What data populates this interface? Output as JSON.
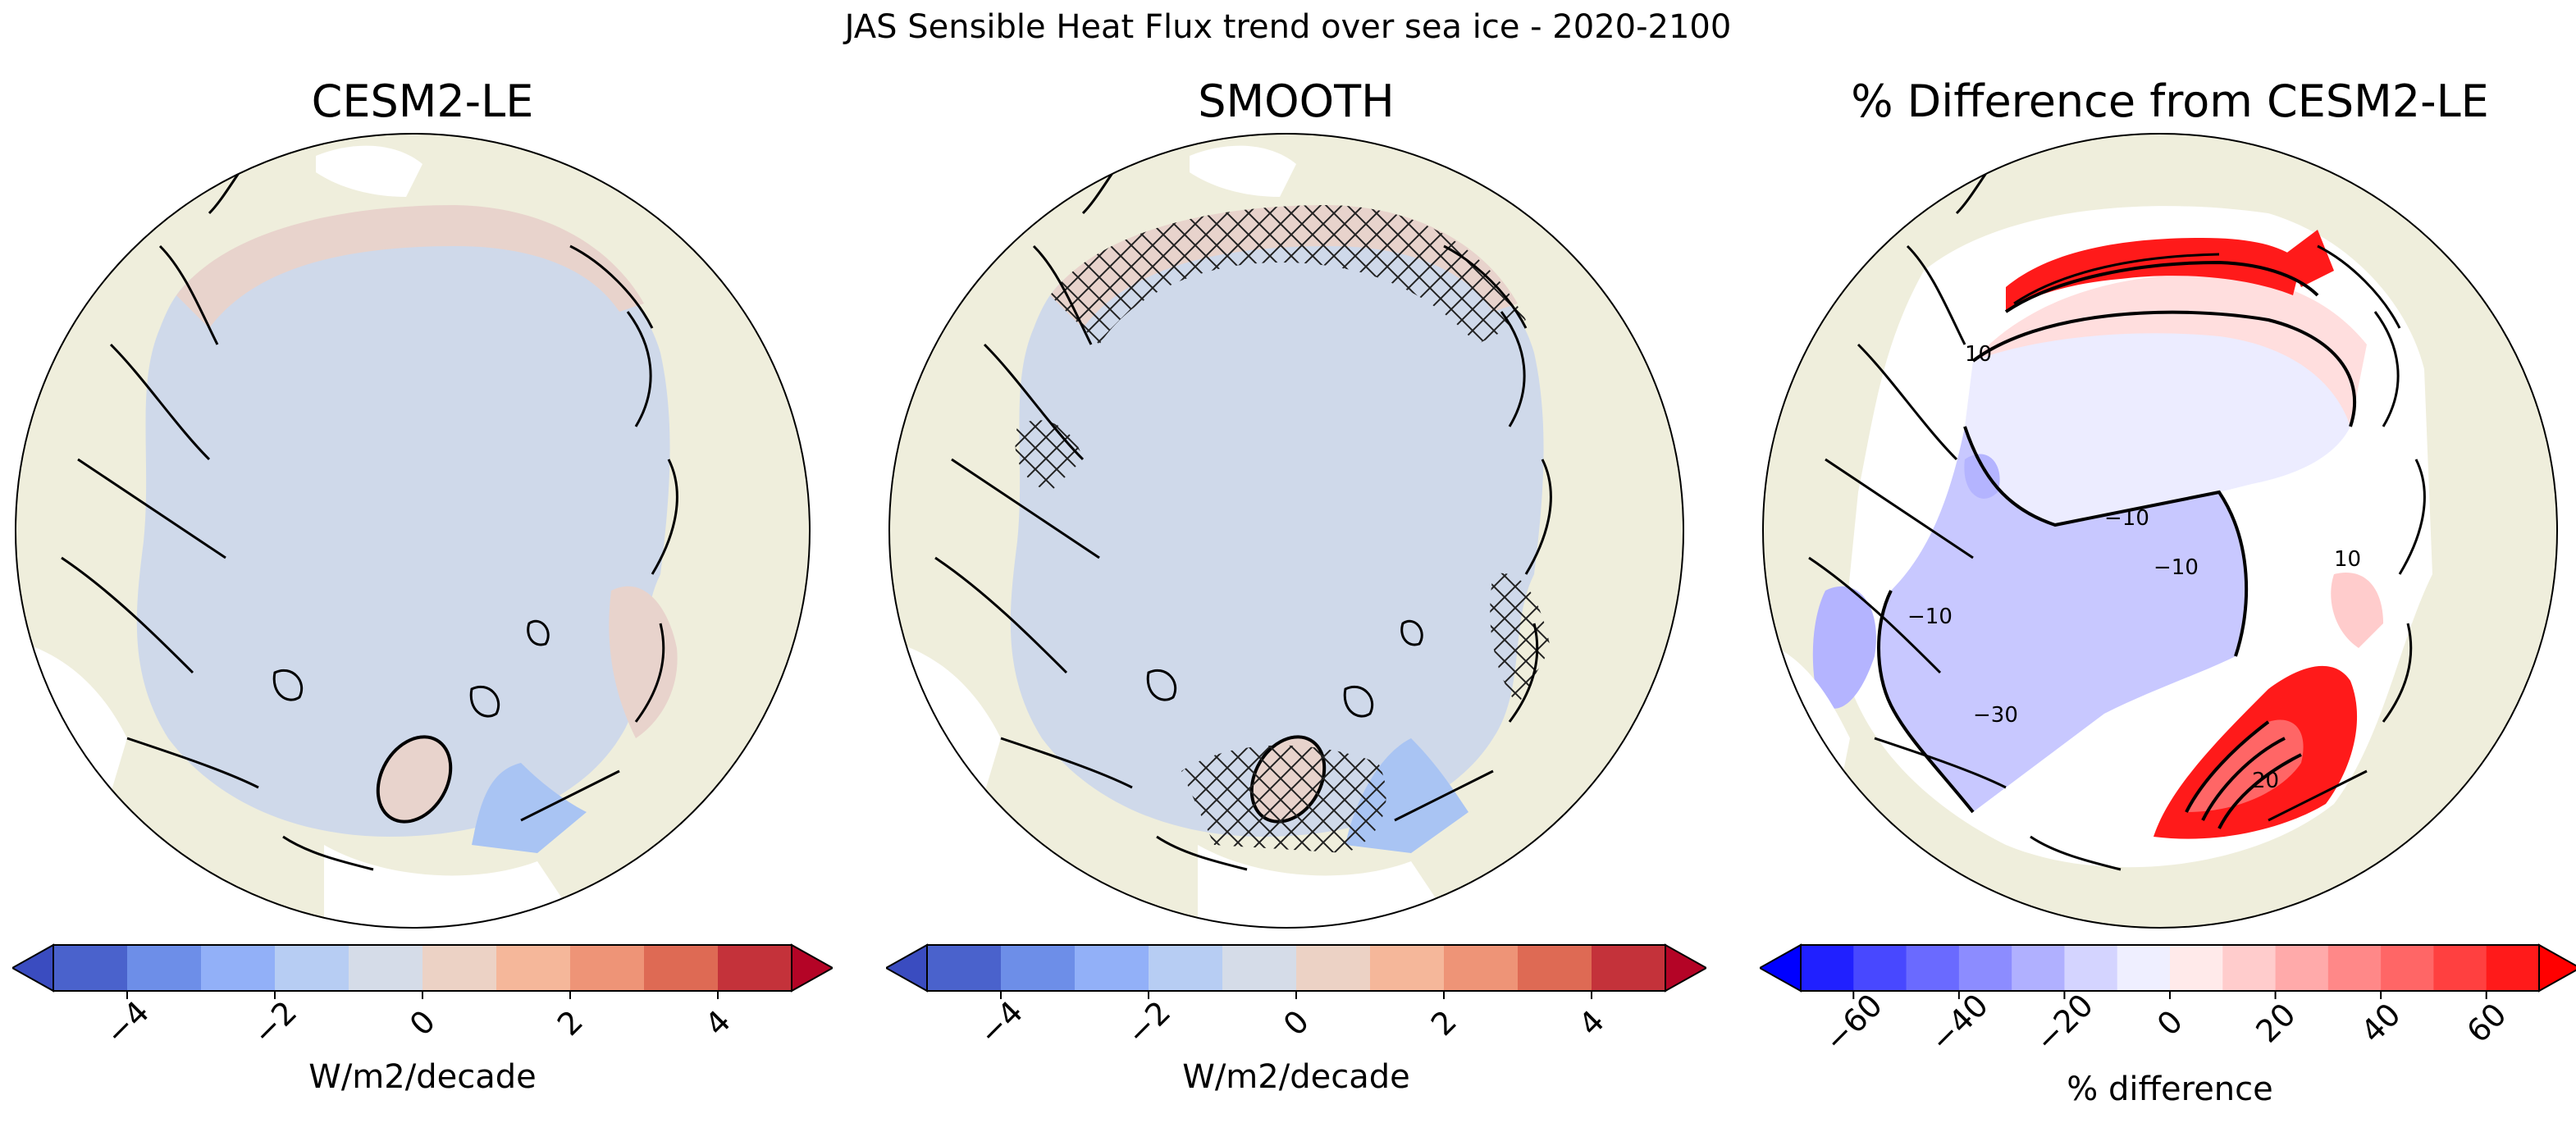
{
  "figure": {
    "suptitle": "JAS Sensible Heat Flux trend over sea ice - 2020-2100"
  },
  "colors": {
    "land": "#efeedc",
    "ocean_open": "#ffffff",
    "ice_neutral": "#cfd9ea",
    "ice_positive": "#e8d3cc",
    "ice_negative_blue": "#a9c4f3"
  },
  "panels": [
    {
      "id": "cesm2-le",
      "title": "CESM2-LE",
      "colorbar": {
        "label": "W/m2/decade",
        "colors": [
          "#4a62cc",
          "#6d8ee8",
          "#92b0f8",
          "#b7cdf3",
          "#d5dce8",
          "#ecd2c5",
          "#f5b79a",
          "#ee9477",
          "#de6a54",
          "#c4323a"
        ],
        "extend_min": "#3a4cc0",
        "extend_max": "#b40426",
        "vmin": -5,
        "vmax": 5,
        "ticks": [
          "−4",
          "−2",
          "0",
          "2",
          "4"
        ],
        "tick_values": [
          -4,
          -2,
          0,
          2,
          4
        ]
      },
      "hatched": false
    },
    {
      "id": "smooth",
      "title": "SMOOTH",
      "colorbar": {
        "label": "W/m2/decade",
        "colors": [
          "#4a62cc",
          "#6d8ee8",
          "#92b0f8",
          "#b7cdf3",
          "#d5dce8",
          "#ecd2c5",
          "#f5b79a",
          "#ee9477",
          "#de6a54",
          "#c4323a"
        ],
        "extend_min": "#3a4cc0",
        "extend_max": "#b40426",
        "vmin": -5,
        "vmax": 5,
        "ticks": [
          "−4",
          "−2",
          "0",
          "2",
          "4"
        ],
        "tick_values": [
          -4,
          -2,
          0,
          2,
          4
        ]
      },
      "hatched": true
    },
    {
      "id": "pct-diff",
      "title": "% Difference from CESM2-LE",
      "colorbar": {
        "label": "% difference",
        "colors": [
          "#2020ff",
          "#4848ff",
          "#6a6aff",
          "#8c8cff",
          "#b0b0ff",
          "#d4d4ff",
          "#efefff",
          "#ffeaea",
          "#ffcccc",
          "#ffaaaa",
          "#ff8888",
          "#ff6666",
          "#ff4040",
          "#ff1a1a"
        ],
        "extend_min": "#0000ff",
        "extend_max": "#ff0000",
        "vmin": -70,
        "vmax": 70,
        "ticks": [
          "−60",
          "−40",
          "−20",
          "0",
          "20",
          "40",
          "60"
        ],
        "tick_values": [
          -60,
          -40,
          -20,
          0,
          20,
          40,
          60
        ]
      },
      "contour_labels": [
        "10",
        "−10",
        "−10",
        "−30",
        "−10",
        "10",
        "20"
      ]
    }
  ]
}
